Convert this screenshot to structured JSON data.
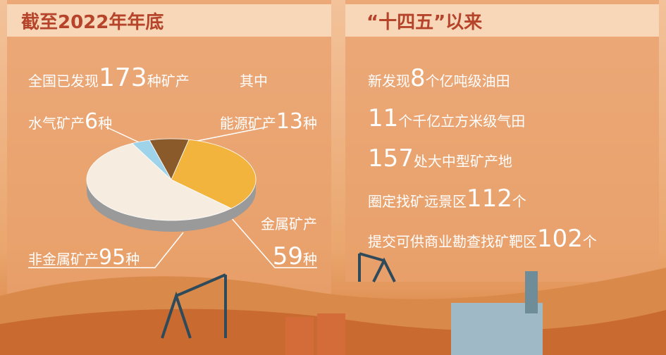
{
  "left": {
    "title": "截至2022年年底",
    "intro": {
      "prefix": "全国已发现",
      "number": "173",
      "suffix": "种矿产",
      "note": "其中"
    },
    "pie": {
      "type": "pie",
      "slices": [
        {
          "name": "能源矿产",
          "value": 13,
          "unit": "种",
          "color": "#8a5a2b"
        },
        {
          "name": "金属矿产",
          "value": 59,
          "unit": "种",
          "color": "#f2b43c"
        },
        {
          "name": "非金属矿产",
          "value": 95,
          "unit": "种",
          "color": "#f6ece0"
        },
        {
          "name": "水气矿产",
          "value": 6,
          "unit": "种",
          "color": "#9fd3ea"
        }
      ]
    }
  },
  "right": {
    "title": "“十四五”以来",
    "items": [
      {
        "prefix": "新发现",
        "number": "8",
        "suffix": "个亿吨级油田"
      },
      {
        "number": "11",
        "suffix": "个千亿立方米级气田"
      },
      {
        "number": "157",
        "suffix": "处大中型矿产地"
      },
      {
        "prefix": "圈定找矿远景区",
        "number": "112",
        "suffix": "个"
      },
      {
        "prefix": "提交可供商业勘查找矿靶区",
        "number": "102",
        "suffix": "个"
      }
    ]
  }
}
